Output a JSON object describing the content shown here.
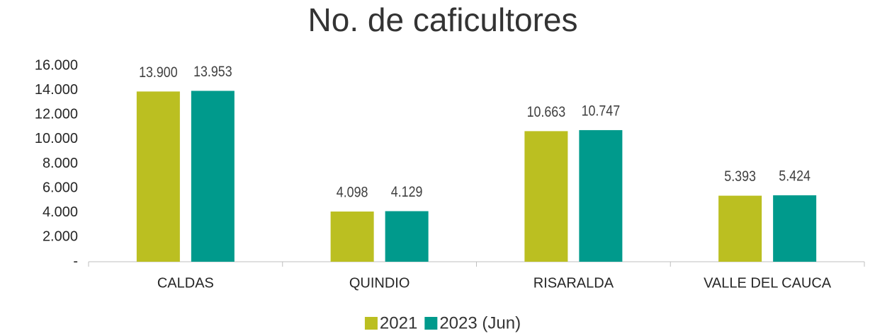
{
  "chart_data": {
    "type": "bar",
    "title": "No. de caficultores",
    "categories": [
      "CALDAS",
      "QUINDIO",
      "RISARALDA",
      "VALLE DEL CAUCA"
    ],
    "series": [
      {
        "name": "2021",
        "color": "#bbbf21",
        "values": [
          13900,
          4098,
          10663,
          5393
        ],
        "value_labels": [
          "13.900",
          "4.098",
          "10.663",
          "5.393"
        ]
      },
      {
        "name": "2023 (Jun)",
        "color": "#009a8c",
        "values": [
          13953,
          4129,
          10747,
          5424
        ],
        "value_labels": [
          "13.953",
          "4.129",
          "10.747",
          "5.424"
        ]
      }
    ],
    "ylim": [
      0,
      16000
    ],
    "yticks": [
      {
        "value": 0,
        "label": "-"
      },
      {
        "value": 2000,
        "label": "2.000"
      },
      {
        "value": 4000,
        "label": "4.000"
      },
      {
        "value": 6000,
        "label": "6.000"
      },
      {
        "value": 8000,
        "label": "8.000"
      },
      {
        "value": 10000,
        "label": "10.000"
      },
      {
        "value": 12000,
        "label": "12.000"
      },
      {
        "value": 14000,
        "label": "14.000"
      },
      {
        "value": 16000,
        "label": "16.000"
      }
    ],
    "grid": false,
    "legend": "bottom"
  }
}
